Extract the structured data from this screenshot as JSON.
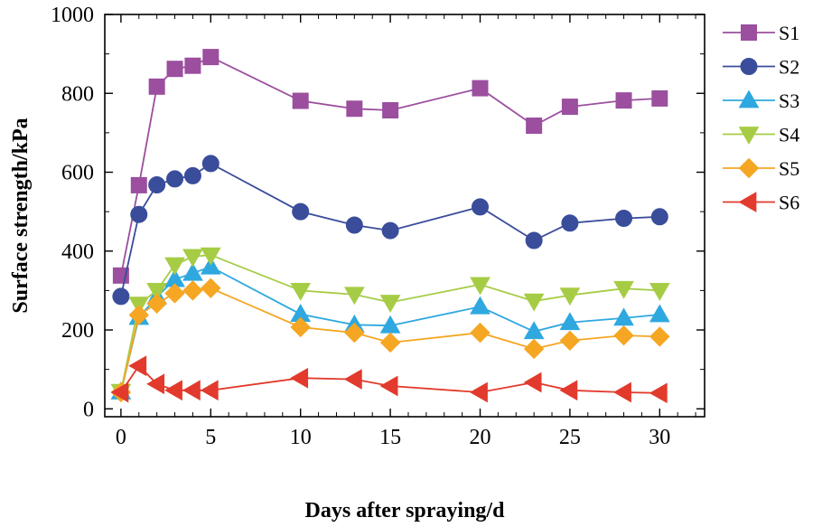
{
  "chart_data": {
    "type": "line",
    "title": "",
    "xlabel": "Days after spraying/d",
    "ylabel": "Surface strength/kPa",
    "xlim": [
      -0.9,
      32.5
    ],
    "ylim": [
      -20,
      1000
    ],
    "xticks": [
      0,
      5,
      10,
      15,
      20,
      25,
      30
    ],
    "yticks": [
      0,
      200,
      400,
      600,
      800,
      1000
    ],
    "grid": false,
    "legend_position": "right",
    "x": [
      0,
      1,
      2,
      3,
      4,
      5,
      10,
      13,
      15,
      20,
      23,
      25,
      28,
      30
    ],
    "series": [
      {
        "name": "S1",
        "color": "#9b4f9e",
        "marker": "square",
        "values": [
          338,
          567,
          817,
          862,
          870,
          892,
          781,
          761,
          757,
          813,
          718,
          766,
          782,
          787
        ]
      },
      {
        "name": "S2",
        "color": "#3a4d9b",
        "marker": "circle",
        "values": [
          285,
          493,
          568,
          583,
          591,
          622,
          500,
          466,
          452,
          512,
          427,
          471,
          483,
          487
        ]
      },
      {
        "name": "S3",
        "color": "#2ea8df",
        "marker": "triangle-up",
        "values": [
          43,
          232,
          284,
          328,
          344,
          360,
          240,
          213,
          211,
          259,
          196,
          219,
          230,
          239
        ]
      },
      {
        "name": "S4",
        "color": "#a6cc45",
        "marker": "triangle-down",
        "values": [
          44,
          265,
          300,
          365,
          386,
          390,
          300,
          290,
          270,
          315,
          273,
          288,
          305,
          300
        ]
      },
      {
        "name": "S5",
        "color": "#f5a623",
        "marker": "diamond",
        "values": [
          42,
          238,
          267,
          293,
          300,
          306,
          207,
          193,
          168,
          193,
          152,
          173,
          186,
          183
        ]
      },
      {
        "name": "S6",
        "color": "#e23a2c",
        "marker": "triangle-left",
        "values": [
          42,
          109,
          63,
          47,
          47,
          47,
          78,
          75,
          58,
          42,
          67,
          47,
          42,
          40
        ]
      }
    ]
  }
}
